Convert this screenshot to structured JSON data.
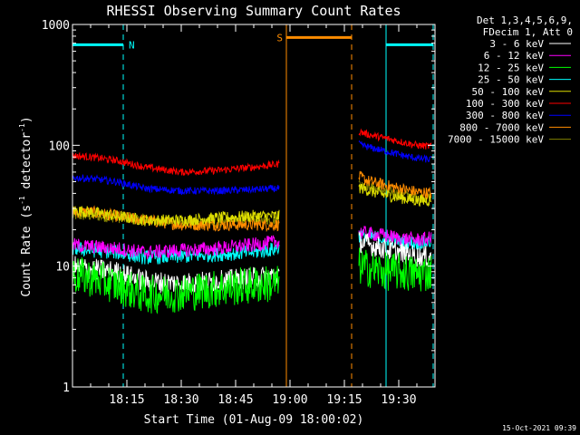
{
  "chart_data": {
    "type": "line",
    "title": "RHESSI Observing Summary Count Rates",
    "xlabel": "Start Time (01-Aug-09 18:00:02)",
    "ylabel_main": "Count Rate (s",
    "ylabel_sup1": "-1",
    "ylabel_mid": " detector",
    "ylabel_sup2": "-1",
    "ylabel_end": ")",
    "y_scale": "log",
    "ylim": [
      1,
      1000
    ],
    "xlim_minutes": [
      0,
      100
    ],
    "y_ticks": [
      {
        "value": 1,
        "label": "1"
      },
      {
        "value": 10,
        "label": "10"
      },
      {
        "value": 100,
        "label": "100"
      },
      {
        "value": 1000,
        "label": "1000"
      }
    ],
    "x_ticks": [
      {
        "minute": 15,
        "label": "18:15"
      },
      {
        "minute": 30,
        "label": "18:30"
      },
      {
        "minute": 45,
        "label": "18:45"
      },
      {
        "minute": 60,
        "label": "19:00"
      },
      {
        "minute": 75,
        "label": "19:15"
      },
      {
        "minute": 90,
        "label": "19:30"
      }
    ],
    "legend_header": [
      "Det 1,3,4,5,6,9,",
      "FDecim 1, Att 0"
    ],
    "legend_placement": "right",
    "timestamp": "15-Oct-2021 09:39",
    "flags": [
      {
        "label": "N",
        "color": "#00ffff",
        "level": 680,
        "start": 0,
        "end": 14
      },
      {
        "label": "",
        "color": "#00ffff",
        "level": 680,
        "start": 86.5,
        "end": 99.5
      },
      {
        "label": "S",
        "color": "#ff8c00",
        "level": 780,
        "start": 59,
        "end": 77
      }
    ],
    "vlines": [
      {
        "minute": 0,
        "color": "#00ffff",
        "style": "solid"
      },
      {
        "minute": 14,
        "color": "#00ffff",
        "style": "dashed"
      },
      {
        "minute": 59,
        "color": "#ff8c00",
        "style": "solid"
      },
      {
        "minute": 77,
        "color": "#ff8c00",
        "style": "dashed"
      },
      {
        "minute": 86.5,
        "color": "#00ffff",
        "style": "solid"
      },
      {
        "minute": 99.5,
        "color": "#00ffff",
        "style": "dashed"
      }
    ],
    "segments": [
      [
        0,
        57
      ],
      [
        79,
        99
      ]
    ],
    "series": [
      {
        "name": "3 - 6 keV",
        "color": "#ffffff",
        "noise": 0.09,
        "points": [
          [
            0,
            10
          ],
          [
            5,
            9.5
          ],
          [
            12,
            9
          ],
          [
            20,
            7.5
          ],
          [
            30,
            7.2
          ],
          [
            40,
            7.5
          ],
          [
            50,
            8
          ],
          [
            57,
            8.5
          ],
          [
            79,
            16
          ],
          [
            82,
            15
          ],
          [
            86,
            14
          ],
          [
            90,
            13
          ],
          [
            95,
            12
          ],
          [
            99,
            12
          ]
        ]
      },
      {
        "name": "6 - 12 keV",
        "color": "#ff00ff",
        "noise": 0.06,
        "points": [
          [
            0,
            15
          ],
          [
            5,
            14.5
          ],
          [
            12,
            14
          ],
          [
            20,
            13
          ],
          [
            30,
            13.5
          ],
          [
            40,
            14
          ],
          [
            50,
            15
          ],
          [
            57,
            16
          ],
          [
            79,
            19
          ],
          [
            82,
            18.5
          ],
          [
            86,
            18
          ],
          [
            90,
            17
          ],
          [
            95,
            16.5
          ],
          [
            99,
            17
          ]
        ]
      },
      {
        "name": "12 - 25 keV",
        "color": "#00ff00",
        "noise": 0.16,
        "points": [
          [
            0,
            8.5
          ],
          [
            5,
            8
          ],
          [
            12,
            7
          ],
          [
            20,
            5.8
          ],
          [
            30,
            6
          ],
          [
            40,
            6.5
          ],
          [
            50,
            7
          ],
          [
            57,
            7.2
          ],
          [
            79,
            10
          ],
          [
            82,
            9.5
          ],
          [
            86,
            9
          ],
          [
            90,
            9
          ],
          [
            95,
            8.5
          ],
          [
            99,
            9
          ]
        ]
      },
      {
        "name": "25 - 50 keV",
        "color": "#00ffff",
        "noise": 0.06,
        "points": [
          [
            0,
            14
          ],
          [
            5,
            13.5
          ],
          [
            12,
            13
          ],
          [
            20,
            11.8
          ],
          [
            30,
            12
          ],
          [
            40,
            12.5
          ],
          [
            50,
            13
          ],
          [
            57,
            14
          ],
          [
            79,
            18
          ],
          [
            82,
            17.5
          ],
          [
            86,
            17
          ],
          [
            90,
            16
          ],
          [
            95,
            15.5
          ],
          [
            99,
            16
          ]
        ]
      },
      {
        "name": "50 - 100 keV",
        "color": "#dddd00",
        "noise": 0.05,
        "points": [
          [
            0,
            29
          ],
          [
            5,
            28
          ],
          [
            12,
            26
          ],
          [
            20,
            24
          ],
          [
            30,
            24
          ],
          [
            40,
            25
          ],
          [
            50,
            26
          ],
          [
            57,
            26
          ],
          [
            79,
            45
          ],
          [
            82,
            42
          ],
          [
            86,
            39
          ],
          [
            90,
            37
          ],
          [
            95,
            35
          ],
          [
            99,
            35
          ]
        ]
      },
      {
        "name": "100 - 300 keV",
        "color": "#ff0000",
        "noise": 0.03,
        "points": [
          [
            0,
            82
          ],
          [
            5,
            80
          ],
          [
            12,
            75
          ],
          [
            20,
            66
          ],
          [
            30,
            60
          ],
          [
            40,
            62
          ],
          [
            50,
            66
          ],
          [
            57,
            70
          ],
          [
            79,
            130
          ],
          [
            82,
            122
          ],
          [
            86,
            115
          ],
          [
            90,
            108
          ],
          [
            95,
            100
          ],
          [
            99,
            98
          ]
        ]
      },
      {
        "name": "300 - 800 keV",
        "color": "#0000ff",
        "noise": 0.03,
        "points": [
          [
            0,
            54
          ],
          [
            5,
            53
          ],
          [
            12,
            50
          ],
          [
            20,
            44
          ],
          [
            30,
            42
          ],
          [
            40,
            42
          ],
          [
            50,
            43
          ],
          [
            57,
            44
          ],
          [
            79,
            102
          ],
          [
            82,
            96
          ],
          [
            86,
            90
          ],
          [
            90,
            84
          ],
          [
            95,
            78
          ],
          [
            99,
            76
          ]
        ]
      },
      {
        "name": "800 - 7000 keV",
        "color": "#ff8c00",
        "noise": 0.05,
        "points": [
          [
            0,
            28
          ],
          [
            5,
            28
          ],
          [
            12,
            26
          ],
          [
            20,
            24
          ],
          [
            30,
            22
          ],
          [
            40,
            22
          ],
          [
            50,
            22
          ],
          [
            57,
            22
          ],
          [
            79,
            55
          ],
          [
            82,
            50
          ],
          [
            86,
            47
          ],
          [
            90,
            44
          ],
          [
            95,
            41
          ],
          [
            99,
            40
          ]
        ]
      },
      {
        "name": "7000 - 15000 keV",
        "color": "#808000",
        "noise": 0.04,
        "points": [
          [
            0,
            26
          ],
          [
            5,
            26
          ],
          [
            12,
            25
          ],
          [
            20,
            24
          ],
          [
            30,
            23
          ],
          [
            40,
            23
          ],
          [
            50,
            24
          ],
          [
            57,
            24
          ],
          [
            79,
            48
          ],
          [
            82,
            45
          ],
          [
            86,
            42
          ],
          [
            90,
            40
          ],
          [
            95,
            37
          ],
          [
            99,
            37
          ]
        ]
      }
    ],
    "draw_order": [
      8,
      7,
      4,
      5,
      6,
      3,
      1,
      0,
      2
    ]
  }
}
